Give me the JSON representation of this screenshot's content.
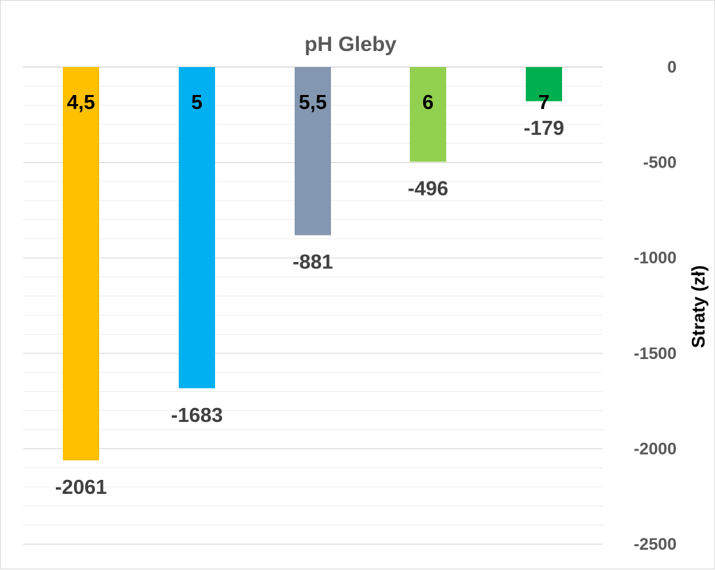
{
  "chart_data": {
    "type": "bar",
    "title": "pH Gleby",
    "categories": [
      "4,5",
      "5",
      "5,5",
      "6",
      "7"
    ],
    "values": [
      -2061,
      -1683,
      -881,
      -496,
      -179
    ],
    "value_labels": [
      "-2061",
      "-1683",
      "-881",
      "-496",
      "-179"
    ],
    "colors": [
      "#FFC000",
      "#00B0F0",
      "#8497B0",
      "#92D050",
      "#00B050"
    ],
    "ylabel": "Straty (zł)",
    "ylim": [
      -2500,
      0
    ],
    "yticks": [
      0,
      -500,
      -1000,
      -1500,
      -2000,
      -2500
    ],
    "ytick_labels": [
      "0",
      "-500",
      "-1000",
      "-1500",
      "-2000",
      "-2500"
    ],
    "y_axis_position": "right",
    "category_labels_position": "inside-top",
    "grid": true,
    "legend": "none"
  }
}
